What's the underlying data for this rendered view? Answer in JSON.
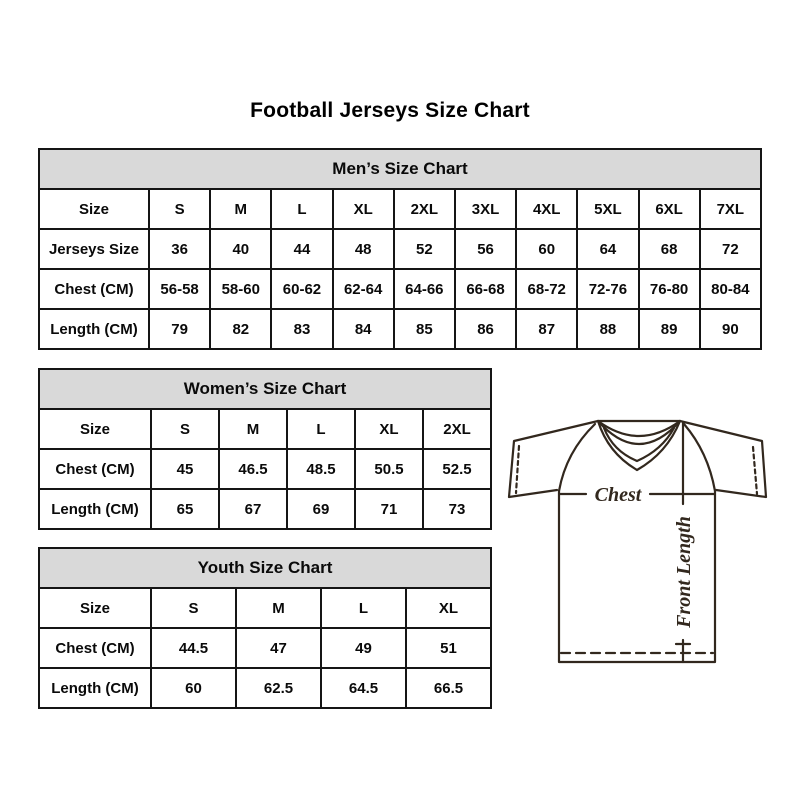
{
  "page": {
    "title": "Football Jerseys Size Chart"
  },
  "tables": [
    {
      "title": "Men’s Size Chart",
      "rows": [
        [
          "Size",
          "S",
          "M",
          "L",
          "XL",
          "2XL",
          "3XL",
          "4XL",
          "5XL",
          "6XL",
          "7XL"
        ],
        [
          "Jerseys Size",
          "36",
          "40",
          "44",
          "48",
          "52",
          "56",
          "60",
          "64",
          "68",
          "72"
        ],
        [
          "Chest (CM)",
          "56-58",
          "58-60",
          "60-62",
          "62-64",
          "64-66",
          "66-68",
          "68-72",
          "72-76",
          "76-80",
          "80-84"
        ],
        [
          "Length (CM)",
          "79",
          "82",
          "83",
          "84",
          "85",
          "86",
          "87",
          "88",
          "89",
          "90"
        ]
      ]
    },
    {
      "title": "Women’s Size Chart",
      "rows": [
        [
          "Size",
          "S",
          "M",
          "L",
          "XL",
          "2XL"
        ],
        [
          "Chest (CM)",
          "45",
          "46.5",
          "48.5",
          "50.5",
          "52.5"
        ],
        [
          "Length (CM)",
          "65",
          "67",
          "69",
          "71",
          "73"
        ]
      ]
    },
    {
      "title": "Youth Size Chart",
      "rows": [
        [
          "Size",
          "S",
          "M",
          "L",
          "XL"
        ],
        [
          "Chest (CM)",
          "44.5",
          "47",
          "49",
          "51"
        ],
        [
          "Length (CM)",
          "60",
          "62.5",
          "64.5",
          "66.5"
        ]
      ]
    }
  ],
  "diagram": {
    "chest_label": "Chest",
    "front_length_label": "Front Length"
  },
  "colors": {
    "table_header_bg": "#d9d9d9",
    "table_border": "#151515",
    "jersey_line": "#32281e"
  }
}
